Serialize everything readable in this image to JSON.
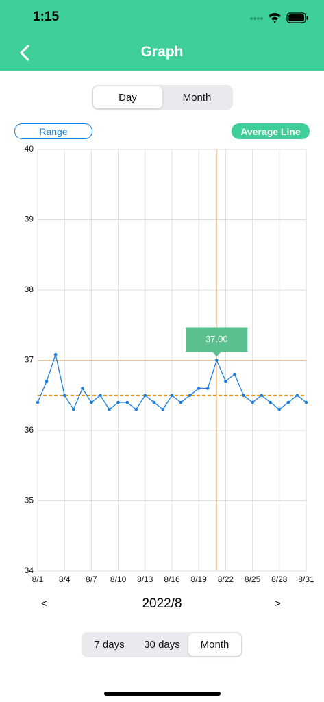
{
  "status_bar": {
    "time": "1:15"
  },
  "header": {
    "title": "Graph"
  },
  "view_tabs": {
    "items": [
      "Day",
      "Month"
    ],
    "selected": 0
  },
  "range_button": "Range",
  "average_button": "Average Line",
  "chart_data": {
    "type": "line",
    "x": [
      1,
      2,
      3,
      4,
      5,
      6,
      7,
      8,
      9,
      10,
      11,
      12,
      13,
      14,
      15,
      16,
      17,
      18,
      19,
      20,
      21,
      22,
      23,
      24,
      25,
      26,
      27,
      28,
      29,
      30,
      31
    ],
    "series": [
      {
        "color": "#1a7fe0",
        "values": [
          36.4,
          36.7,
          37.08,
          36.5,
          36.3,
          36.6,
          36.4,
          36.5,
          36.3,
          36.4,
          36.4,
          36.3,
          36.5,
          36.4,
          36.3,
          36.5,
          36.4,
          36.5,
          36.6,
          36.6,
          37.0,
          36.7,
          36.8,
          36.5,
          36.4,
          36.5,
          36.4,
          36.3,
          36.4,
          36.5,
          36.4
        ]
      }
    ],
    "average": 36.5,
    "average_color": "#f39c12",
    "highlight": {
      "x": 21,
      "y": 37.0,
      "label": "37.00"
    },
    "xlim": [
      1,
      31
    ],
    "xticks": [
      {
        "value": 1,
        "label": "8/1"
      },
      {
        "value": 4,
        "label": "8/4"
      },
      {
        "value": 7,
        "label": "8/7"
      },
      {
        "value": 10,
        "label": "8/10"
      },
      {
        "value": 13,
        "label": "8/13"
      },
      {
        "value": 16,
        "label": "8/16"
      },
      {
        "value": 19,
        "label": "8/19"
      },
      {
        "value": 22,
        "label": "8/22"
      },
      {
        "value": 25,
        "label": "8/25"
      },
      {
        "value": 28,
        "label": "8/28"
      },
      {
        "value": 31,
        "label": "8/31"
      }
    ],
    "ylim": [
      34,
      40
    ],
    "yticks": [
      34,
      35,
      36,
      37,
      38,
      39,
      40
    ],
    "grid": true
  },
  "period": {
    "prev": "<",
    "label": "2022/8",
    "next": ">"
  },
  "range_tabs": {
    "items": [
      "7 days",
      "30 days",
      "Month"
    ],
    "selected": 2
  }
}
